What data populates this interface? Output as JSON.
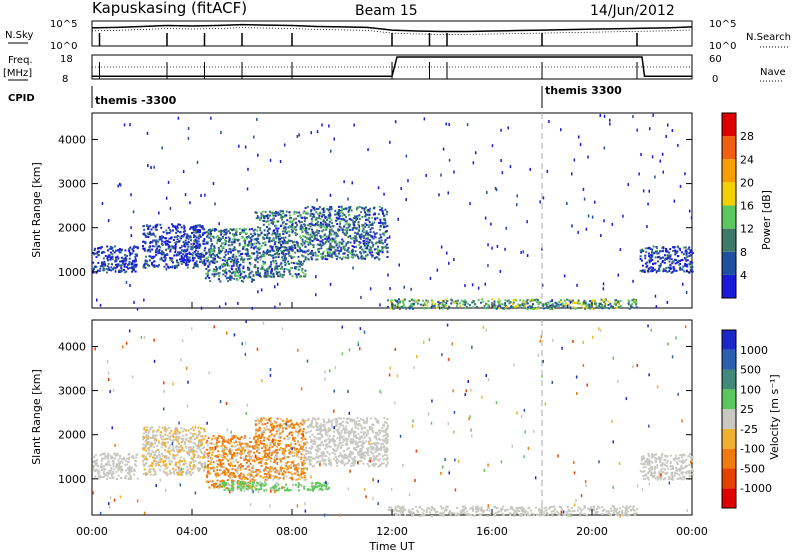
{
  "header": {
    "station": "Kapuskasing (fitACF)",
    "beam": "Beam 15",
    "date": "14/Jun/2012"
  },
  "noise_panel": {
    "left_label": "N.Sky",
    "right_label": "N.Search",
    "left_ticks": [
      "10^5",
      "10^0"
    ],
    "right_ticks": [
      "10^5",
      "10^0"
    ]
  },
  "freq_panel": {
    "left_label": "Freq.",
    "left_unit": "[MHz]",
    "right_label": "Nave",
    "left_ticks": [
      "18",
      "8"
    ],
    "right_ticks": [
      "60",
      "0"
    ]
  },
  "cpid_panel": {
    "label": "CPID",
    "segments": [
      {
        "text": "themis -3300",
        "start_hour": 0
      },
      {
        "text": "themis 3300",
        "start_hour": 18
      }
    ]
  },
  "power_panel": {
    "ylabel": "Slant Range [km]",
    "yticks": [
      "1000",
      "2000",
      "3000",
      "4000"
    ],
    "colorbar_label": "Power [dB]",
    "colorbar_ticks": [
      "4",
      "8",
      "12",
      "16",
      "20",
      "24",
      "28"
    ],
    "colors": [
      "#1a1adb",
      "#1e4fa0",
      "#3d7a6a",
      "#5bc85b",
      "#f5d000",
      "#f5a000",
      "#f06010",
      "#e00000"
    ]
  },
  "velocity_panel": {
    "ylabel": "Slant Range [km]",
    "yticks": [
      "1000",
      "2000",
      "3000",
      "4000"
    ],
    "colorbar_label": "Velocity [m s⁻¹]",
    "colorbar_ticks": [
      "1000",
      "500",
      "100",
      "25",
      "-25",
      "-100",
      "-500",
      "-1000"
    ],
    "colors": [
      "#1a28c8",
      "#2a5fb0",
      "#3f8a7a",
      "#5cc85c",
      "#c8c8c0",
      "#f0b030",
      "#f07a10",
      "#e84000",
      "#e00000"
    ]
  },
  "x_axis": {
    "label": "Time UT",
    "ticks": [
      "00:00",
      "04:00",
      "08:00",
      "12:00",
      "16:00",
      "20:00",
      "00:00"
    ]
  },
  "chart_data": [
    {
      "type": "line",
      "title": "N.Sky / N.Search",
      "x_range": [
        0,
        24
      ],
      "series": [
        {
          "name": "N.Sky",
          "x": [
            0,
            1,
            2,
            3,
            4,
            5,
            6,
            7,
            8,
            9,
            10,
            11,
            12,
            13,
            14,
            15,
            16,
            17,
            18,
            19,
            20,
            21,
            22,
            23,
            24
          ],
          "y": [
            4.0,
            4.1,
            4.3,
            4.5,
            4.4,
            4.5,
            4.7,
            4.6,
            4.5,
            4.3,
            4.2,
            4.1,
            3.5,
            3.3,
            3.2,
            3.2,
            3.3,
            3.4,
            3.5,
            3.6,
            3.7,
            3.8,
            3.9,
            4.0,
            4.2
          ]
        }
      ]
    },
    {
      "type": "line",
      "title": "Freq. / Nave",
      "x_range": [
        0,
        24
      ],
      "series": [
        {
          "name": "Freq.",
          "x": [
            0,
            12,
            12.2,
            22,
            22.1,
            24
          ],
          "y": [
            10.0,
            10.0,
            18.0,
            18.0,
            10.0,
            10.0
          ]
        }
      ]
    },
    {
      "type": "heatmap",
      "title": "Power [dB]",
      "x_range": [
        0,
        24
      ],
      "y_range": [
        180,
        4600
      ],
      "color_range": [
        0,
        32
      ],
      "regions": [
        {
          "x": [
            0,
            1.8
          ],
          "y": [
            1000,
            1600
          ],
          "value": 5
        },
        {
          "x": [
            2,
            4.5
          ],
          "y": [
            1100,
            2100
          ],
          "value": 6
        },
        {
          "x": [
            4.5,
            6.5
          ],
          "y": [
            800,
            2000
          ],
          "value": 10
        },
        {
          "x": [
            6.5,
            8.5
          ],
          "y": [
            900,
            2400
          ],
          "value": 9
        },
        {
          "x": [
            8.5,
            11.8
          ],
          "y": [
            1300,
            2500
          ],
          "value": 8
        },
        {
          "x": [
            11.8,
            21.8
          ],
          "y": [
            180,
            400
          ],
          "value": 12
        },
        {
          "x": [
            21.9,
            24
          ],
          "y": [
            1000,
            1600
          ],
          "value": 5
        }
      ]
    },
    {
      "type": "heatmap",
      "title": "Velocity [m s⁻¹]",
      "x_range": [
        0,
        24
      ],
      "y_range": [
        180,
        4600
      ],
      "color_range": [
        -1000,
        1000
      ],
      "regions": [
        {
          "x": [
            0,
            1.8
          ],
          "y": [
            1000,
            1600
          ],
          "value": 0
        },
        {
          "x": [
            2,
            4.5
          ],
          "y": [
            1100,
            2200
          ],
          "value": -50
        },
        {
          "x": [
            4.5,
            6.5
          ],
          "y": [
            800,
            2000
          ],
          "value": -200
        },
        {
          "x": [
            5,
            9.5
          ],
          "y": [
            750,
            950
          ],
          "value": 150
        },
        {
          "x": [
            6.5,
            8.5
          ],
          "y": [
            1000,
            2400
          ],
          "value": -150
        },
        {
          "x": [
            8.5,
            11.8
          ],
          "y": [
            1300,
            2400
          ],
          "value": 0
        },
        {
          "x": [
            11.8,
            21.8
          ],
          "y": [
            180,
            400
          ],
          "value": 0
        },
        {
          "x": [
            21.9,
            24
          ],
          "y": [
            1000,
            1600
          ],
          "value": 0
        }
      ]
    }
  ]
}
